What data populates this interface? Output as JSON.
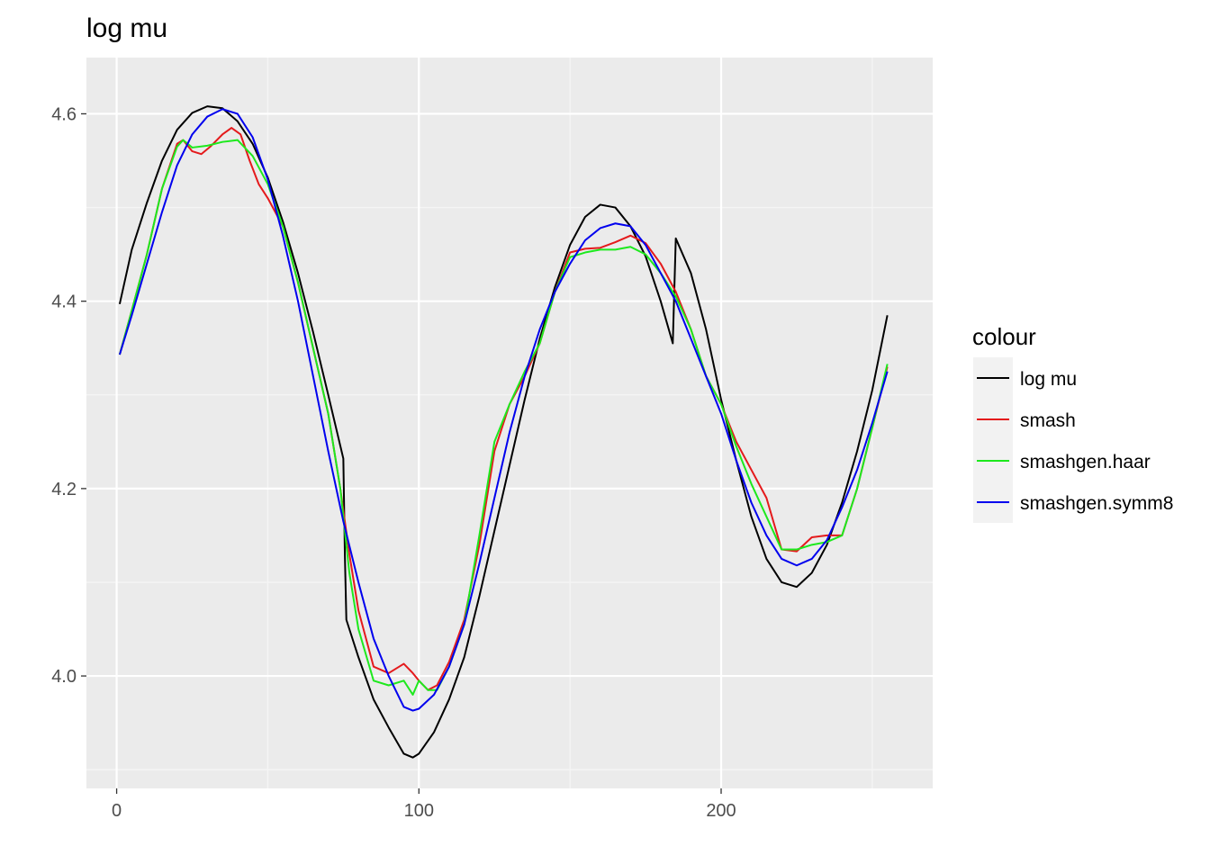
{
  "chart_data": {
    "type": "line",
    "title": "log mu",
    "xlabel": "",
    "ylabel": "",
    "xlim": [
      -10,
      270
    ],
    "ylim": [
      3.88,
      4.66
    ],
    "x_ticks": [
      0,
      100,
      200
    ],
    "y_ticks": [
      4.0,
      4.2,
      4.4,
      4.6
    ],
    "x_tick_labels": [
      "0",
      "100",
      "200"
    ],
    "y_tick_labels": [
      "4.0",
      "4.2",
      "4.4",
      "4.6"
    ],
    "grid": true,
    "legend": {
      "title": "colour",
      "placement": "right"
    },
    "series": [
      {
        "name": "log mu",
        "color": "#000000",
        "points": [
          [
            1,
            4.397
          ],
          [
            5,
            4.455
          ],
          [
            10,
            4.505
          ],
          [
            15,
            4.55
          ],
          [
            20,
            4.583
          ],
          [
            25,
            4.601
          ],
          [
            30,
            4.608
          ],
          [
            35,
            4.606
          ],
          [
            40,
            4.592
          ],
          [
            45,
            4.568
          ],
          [
            50,
            4.532
          ],
          [
            55,
            4.485
          ],
          [
            60,
            4.43
          ],
          [
            65,
            4.367
          ],
          [
            70,
            4.3
          ],
          [
            75,
            4.232
          ],
          [
            75.5,
            4.13
          ],
          [
            76,
            4.06
          ],
          [
            80,
            4.02
          ],
          [
            85,
            3.975
          ],
          [
            90,
            3.945
          ],
          [
            95,
            3.917
          ],
          [
            98,
            3.913
          ],
          [
            100,
            3.917
          ],
          [
            105,
            3.94
          ],
          [
            110,
            3.975
          ],
          [
            115,
            4.02
          ],
          [
            120,
            4.085
          ],
          [
            125,
            4.155
          ],
          [
            130,
            4.225
          ],
          [
            135,
            4.295
          ],
          [
            140,
            4.36
          ],
          [
            145,
            4.415
          ],
          [
            150,
            4.46
          ],
          [
            155,
            4.49
          ],
          [
            160,
            4.503
          ],
          [
            165,
            4.5
          ],
          [
            170,
            4.48
          ],
          [
            175,
            4.448
          ],
          [
            180,
            4.4
          ],
          [
            184,
            4.355
          ],
          [
            185,
            4.467
          ],
          [
            190,
            4.43
          ],
          [
            195,
            4.37
          ],
          [
            200,
            4.295
          ],
          [
            205,
            4.23
          ],
          [
            210,
            4.17
          ],
          [
            215,
            4.125
          ],
          [
            220,
            4.1
          ],
          [
            225,
            4.095
          ],
          [
            230,
            4.11
          ],
          [
            235,
            4.14
          ],
          [
            240,
            4.185
          ],
          [
            245,
            4.24
          ],
          [
            250,
            4.305
          ],
          [
            255,
            4.385
          ]
        ]
      },
      {
        "name": "smash",
        "color": "#e41a1c",
        "points": [
          [
            1,
            4.343
          ],
          [
            5,
            4.39
          ],
          [
            10,
            4.45
          ],
          [
            15,
            4.52
          ],
          [
            20,
            4.568
          ],
          [
            22,
            4.572
          ],
          [
            25,
            4.56
          ],
          [
            28,
            4.557
          ],
          [
            31,
            4.565
          ],
          [
            35,
            4.578
          ],
          [
            38,
            4.585
          ],
          [
            41,
            4.578
          ],
          [
            44,
            4.55
          ],
          [
            47,
            4.525
          ],
          [
            50,
            4.51
          ],
          [
            55,
            4.48
          ],
          [
            60,
            4.42
          ],
          [
            65,
            4.35
          ],
          [
            70,
            4.28
          ],
          [
            74,
            4.2
          ],
          [
            77,
            4.13
          ],
          [
            80,
            4.07
          ],
          [
            85,
            4.01
          ],
          [
            90,
            4.003
          ],
          [
            95,
            4.013
          ],
          [
            98,
            4.003
          ],
          [
            100,
            3.995
          ],
          [
            103,
            3.985
          ],
          [
            106,
            3.99
          ],
          [
            110,
            4.015
          ],
          [
            115,
            4.06
          ],
          [
            120,
            4.14
          ],
          [
            125,
            4.24
          ],
          [
            130,
            4.29
          ],
          [
            135,
            4.32
          ],
          [
            140,
            4.355
          ],
          [
            145,
            4.41
          ],
          [
            150,
            4.452
          ],
          [
            155,
            4.456
          ],
          [
            160,
            4.457
          ],
          [
            165,
            4.463
          ],
          [
            170,
            4.47
          ],
          [
            175,
            4.462
          ],
          [
            180,
            4.44
          ],
          [
            185,
            4.41
          ],
          [
            190,
            4.37
          ],
          [
            195,
            4.32
          ],
          [
            200,
            4.29
          ],
          [
            205,
            4.25
          ],
          [
            210,
            4.22
          ],
          [
            215,
            4.19
          ],
          [
            220,
            4.135
          ],
          [
            225,
            4.133
          ],
          [
            230,
            4.148
          ],
          [
            235,
            4.15
          ],
          [
            240,
            4.15
          ],
          [
            245,
            4.2
          ],
          [
            250,
            4.265
          ],
          [
            255,
            4.33
          ]
        ]
      },
      {
        "name": "smashgen.haar",
        "color": "#1de91d",
        "points": [
          [
            1,
            4.343
          ],
          [
            5,
            4.39
          ],
          [
            10,
            4.45
          ],
          [
            15,
            4.52
          ],
          [
            20,
            4.565
          ],
          [
            22,
            4.572
          ],
          [
            25,
            4.564
          ],
          [
            30,
            4.566
          ],
          [
            35,
            4.57
          ],
          [
            40,
            4.572
          ],
          [
            45,
            4.555
          ],
          [
            50,
            4.525
          ],
          [
            55,
            4.48
          ],
          [
            60,
            4.42
          ],
          [
            65,
            4.35
          ],
          [
            70,
            4.28
          ],
          [
            74,
            4.2
          ],
          [
            77,
            4.11
          ],
          [
            80,
            4.05
          ],
          [
            85,
            3.995
          ],
          [
            90,
            3.99
          ],
          [
            95,
            3.995
          ],
          [
            97,
            3.985
          ],
          [
            98,
            3.98
          ],
          [
            100,
            3.995
          ],
          [
            103,
            3.985
          ],
          [
            106,
            3.985
          ],
          [
            110,
            4.01
          ],
          [
            115,
            4.055
          ],
          [
            120,
            4.15
          ],
          [
            125,
            4.25
          ],
          [
            130,
            4.29
          ],
          [
            135,
            4.325
          ],
          [
            140,
            4.355
          ],
          [
            145,
            4.41
          ],
          [
            150,
            4.447
          ],
          [
            155,
            4.452
          ],
          [
            160,
            4.455
          ],
          [
            165,
            4.455
          ],
          [
            170,
            4.458
          ],
          [
            175,
            4.45
          ],
          [
            180,
            4.43
          ],
          [
            185,
            4.405
          ],
          [
            190,
            4.37
          ],
          [
            195,
            4.32
          ],
          [
            200,
            4.29
          ],
          [
            205,
            4.245
          ],
          [
            210,
            4.205
          ],
          [
            215,
            4.17
          ],
          [
            220,
            4.135
          ],
          [
            225,
            4.135
          ],
          [
            230,
            4.14
          ],
          [
            235,
            4.143
          ],
          [
            240,
            4.15
          ],
          [
            245,
            4.2
          ],
          [
            250,
            4.265
          ],
          [
            255,
            4.333
          ]
        ]
      },
      {
        "name": "smashgen.symm8",
        "color": "#0000ee",
        "points": [
          [
            1,
            4.343
          ],
          [
            5,
            4.385
          ],
          [
            10,
            4.44
          ],
          [
            15,
            4.495
          ],
          [
            20,
            4.545
          ],
          [
            25,
            4.578
          ],
          [
            30,
            4.597
          ],
          [
            35,
            4.605
          ],
          [
            40,
            4.6
          ],
          [
            45,
            4.575
          ],
          [
            50,
            4.53
          ],
          [
            55,
            4.47
          ],
          [
            60,
            4.4
          ],
          [
            65,
            4.32
          ],
          [
            70,
            4.24
          ],
          [
            75,
            4.165
          ],
          [
            80,
            4.1
          ],
          [
            85,
            4.04
          ],
          [
            90,
            4.0
          ],
          [
            95,
            3.967
          ],
          [
            98,
            3.963
          ],
          [
            100,
            3.965
          ],
          [
            105,
            3.98
          ],
          [
            110,
            4.01
          ],
          [
            115,
            4.055
          ],
          [
            120,
            4.12
          ],
          [
            125,
            4.19
          ],
          [
            130,
            4.26
          ],
          [
            135,
            4.32
          ],
          [
            140,
            4.37
          ],
          [
            145,
            4.41
          ],
          [
            150,
            4.44
          ],
          [
            155,
            4.465
          ],
          [
            160,
            4.478
          ],
          [
            165,
            4.483
          ],
          [
            170,
            4.48
          ],
          [
            175,
            4.46
          ],
          [
            180,
            4.43
          ],
          [
            185,
            4.4
          ],
          [
            190,
            4.36
          ],
          [
            195,
            4.32
          ],
          [
            200,
            4.28
          ],
          [
            205,
            4.23
          ],
          [
            210,
            4.185
          ],
          [
            215,
            4.15
          ],
          [
            220,
            4.125
          ],
          [
            225,
            4.118
          ],
          [
            230,
            4.125
          ],
          [
            235,
            4.145
          ],
          [
            240,
            4.18
          ],
          [
            245,
            4.22
          ],
          [
            250,
            4.27
          ],
          [
            255,
            4.325
          ]
        ]
      }
    ]
  }
}
